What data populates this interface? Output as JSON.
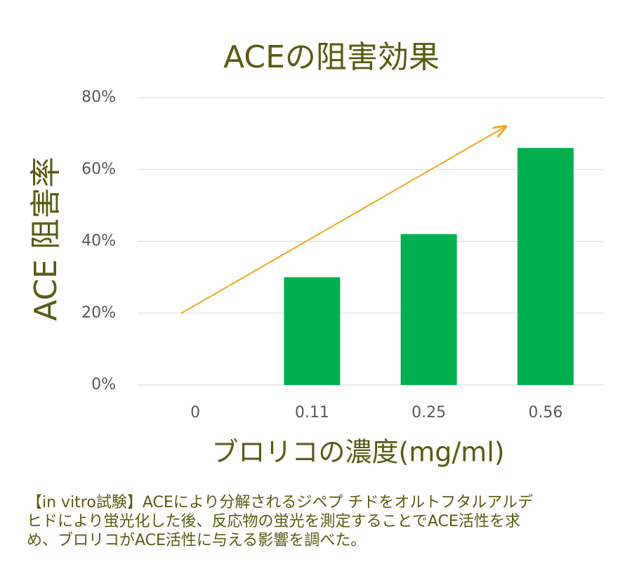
{
  "chart_data": {
    "type": "bar",
    "title": "ACEの阻害効果",
    "y_label": "ACE 阻害率",
    "x_label": "ブロリコの濃度(mg/ml)",
    "categories": [
      "0",
      "0.11",
      "0.25",
      "0.56"
    ],
    "values": [
      0,
      30,
      42,
      66
    ],
    "color": "#00b050",
    "ylim": [
      0,
      80
    ],
    "yticks": [
      {
        "value": 0,
        "label": "0%"
      },
      {
        "value": 20,
        "label": "20%"
      },
      {
        "value": 40,
        "label": "40%"
      },
      {
        "value": 60,
        "label": "60%"
      },
      {
        "value": 80,
        "label": "80%"
      }
    ],
    "grid": true,
    "caption": [
      "【in vitro試験】ACEにより分解されるジペプ チドをオルトフタルアルデ",
      "ヒドにより蛍光化した後、反応物の蛍光を測定することでACE活性を求",
      "め、ブロリコがACE活性に与える影響を調べた。"
    ]
  }
}
